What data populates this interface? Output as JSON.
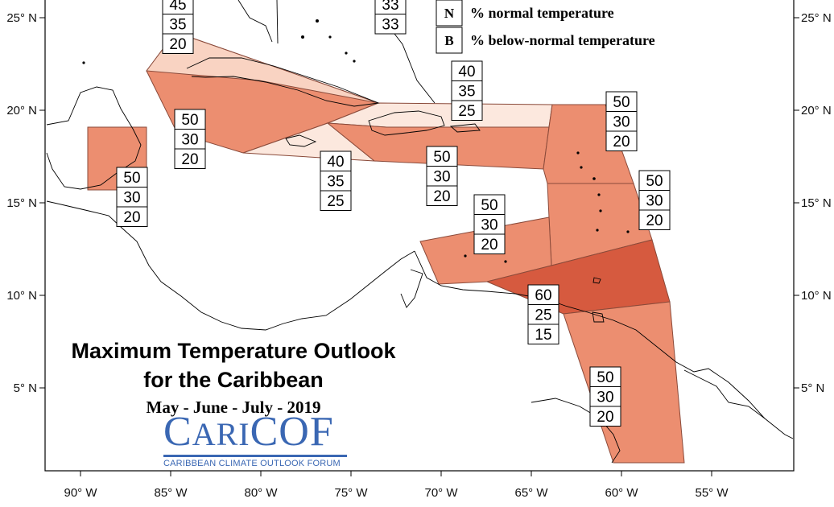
{
  "title": {
    "line1": "Maximum Temperature Outlook",
    "line2": "for the Caribbean",
    "period": "May - June - July - 2019"
  },
  "logo": {
    "prefix": "C",
    "mid": "ARI",
    "suffix": "COF",
    "subtitle": "CARIBBEAN CLIMATE OUTLOOK FORUM"
  },
  "legend": [
    {
      "key": "N",
      "label": "% normal temperature"
    },
    {
      "key": "B",
      "label": "% below-normal temperature"
    }
  ],
  "axes": {
    "lon_ticks": [
      "90° W",
      "85° W",
      "80° W",
      "75° W",
      "70° W",
      "65° W",
      "60° W",
      "55° W"
    ],
    "lat_ticks": [
      "25° N",
      "20° N",
      "15° N",
      "10° N",
      "5° N"
    ]
  },
  "colors": {
    "class_50": "#ec8e70",
    "class_60": "#d65a3f",
    "class_40": "#f9d3c2",
    "class_33": "#fce8de",
    "border": "#8a4a3a"
  },
  "regions": [
    {
      "name": "bahamas-top",
      "probs": [
        45,
        35,
        20
      ]
    },
    {
      "name": "turks-caicos",
      "probs": [
        33,
        33
      ]
    },
    {
      "name": "cuba",
      "probs": [
        50,
        30,
        20
      ]
    },
    {
      "name": "jamaica",
      "probs": [
        40,
        35,
        25
      ]
    },
    {
      "name": "hispaniola-north",
      "probs": [
        40,
        35,
        25
      ]
    },
    {
      "name": "hispaniola-puerto-rico",
      "probs": [
        50,
        30,
        20
      ]
    },
    {
      "name": "belize",
      "probs": [
        50,
        30,
        20
      ]
    },
    {
      "name": "leeward-islands",
      "probs": [
        50,
        30,
        20
      ]
    },
    {
      "name": "windward-islands",
      "probs": [
        50,
        30,
        20
      ]
    },
    {
      "name": "abc-islands",
      "probs": [
        50,
        30,
        20
      ]
    },
    {
      "name": "trinidad-tobago",
      "probs": [
        60,
        25,
        15
      ]
    },
    {
      "name": "guianas",
      "probs": [
        50,
        30,
        20
      ]
    }
  ]
}
